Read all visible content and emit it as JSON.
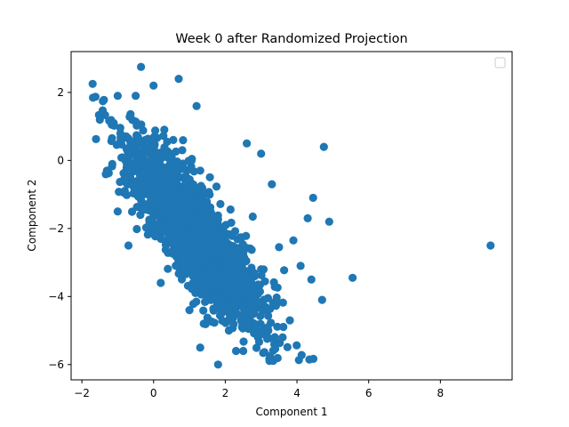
{
  "chart_data": {
    "type": "scatter",
    "title": "Week 0 after Randomized Projection",
    "xlabel": "Component 1",
    "ylabel": "Component 2",
    "xlim": [
      -2.3,
      10.0
    ],
    "ylim": [
      -6.45,
      3.2
    ],
    "xticks": [
      -2,
      0,
      2,
      4,
      6,
      8
    ],
    "yticks": [
      -6,
      -4,
      -2,
      0,
      2
    ],
    "xtick_labels": [
      "−2",
      "0",
      "2",
      "4",
      "6",
      "8"
    ],
    "ytick_labels": [
      "−6",
      "−4",
      "−2",
      "0",
      "2"
    ],
    "grid": false,
    "legend": {
      "placement": "top-right",
      "entries": []
    },
    "series_color": "#1f77b4",
    "outliers": [
      [
        9.4,
        -2.5
      ],
      [
        5.55,
        -3.45
      ],
      [
        4.75,
        0.4
      ],
      [
        4.9,
        -1.8
      ],
      [
        4.45,
        -1.1
      ],
      [
        4.3,
        -1.7
      ],
      [
        4.7,
        -4.1
      ],
      [
        4.4,
        -3.5
      ],
      [
        -1.7,
        2.25
      ],
      [
        -0.35,
        2.75
      ],
      [
        0.0,
        2.2
      ],
      [
        0.7,
        2.4
      ],
      [
        -1.5,
        1.2
      ],
      [
        -1.0,
        1.9
      ],
      [
        -0.5,
        1.9
      ],
      [
        1.2,
        1.6
      ],
      [
        1.8,
        -6.0
      ],
      [
        2.3,
        -5.6
      ],
      [
        3.3,
        -0.7
      ],
      [
        3.0,
        0.2
      ],
      [
        2.6,
        0.5
      ],
      [
        3.6,
        -5.2
      ],
      [
        3.8,
        -4.7
      ],
      [
        2.5,
        -5.6
      ],
      [
        1.3,
        -5.5
      ],
      [
        3.2,
        -5.0
      ],
      [
        4.1,
        -3.1
      ],
      [
        3.9,
        -2.35
      ],
      [
        3.5,
        -2.55
      ],
      [
        -1.3,
        -0.3
      ],
      [
        -1.0,
        -1.5
      ],
      [
        -0.7,
        -2.5
      ],
      [
        0.2,
        -3.6
      ],
      [
        2.8,
        -4.4
      ],
      [
        3.0,
        -3.2
      ]
    ],
    "core_samples": [
      [
        0.3,
        0.9
      ],
      [
        0.55,
        0.6
      ],
      [
        0.8,
        0.3
      ],
      [
        1.05,
        0.0
      ],
      [
        1.3,
        -0.3
      ],
      [
        0.2,
        -0.8
      ],
      [
        0.5,
        -1.1
      ],
      [
        0.8,
        -1.5
      ],
      [
        1.1,
        -1.8
      ],
      [
        1.4,
        -2.1
      ],
      [
        1.7,
        -2.4
      ],
      [
        2.0,
        -2.7
      ],
      [
        2.3,
        -3.0
      ],
      [
        0.9,
        -3.2
      ],
      [
        1.2,
        -3.5
      ],
      [
        1.5,
        -3.8
      ],
      [
        1.8,
        -4.1
      ],
      [
        2.1,
        -4.4
      ],
      [
        1.4,
        -4.8
      ],
      [
        1.0,
        -4.4
      ]
    ],
    "n_points": 2200
  }
}
